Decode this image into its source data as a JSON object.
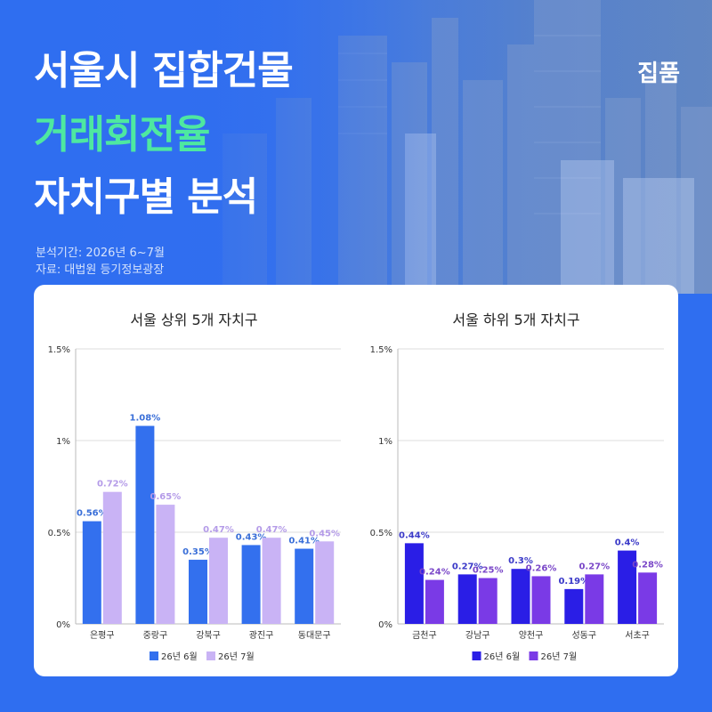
{
  "header": {
    "title_line1": "서울시 집합건물",
    "title_line2": "거래회전율",
    "title_line3": "자치구별 분석",
    "brand": "집품",
    "period": "분석기간: 2026년 6~7월",
    "source": "자료: 대법원 등기정보광장"
  },
  "colors": {
    "background": "#2f6ef0",
    "highlight_text": "#4ee8a0",
    "left_june": "#3370ee",
    "left_july": "#c9b3f5",
    "right_june": "#2a1ee6",
    "right_july": "#7a3ae6"
  },
  "chart_data": [
    {
      "type": "bar",
      "title": "서울 상위 5개 자치구",
      "categories": [
        "은평구",
        "중랑구",
        "강북구",
        "광진구",
        "동대문구"
      ],
      "series": [
        {
          "name": "26년 6월",
          "values": [
            0.56,
            1.08,
            0.35,
            0.43,
            0.41
          ],
          "labels": [
            "0.56%",
            "1.08%",
            "0.35%",
            "0.43%",
            "0.41%"
          ]
        },
        {
          "name": "26년 7월",
          "values": [
            0.72,
            0.65,
            0.47,
            0.47,
            0.45
          ],
          "labels": [
            "0.72%",
            "0.65%",
            "0.47%",
            "0.47%",
            "0.45%"
          ]
        }
      ],
      "ylim": [
        0,
        1.5
      ],
      "yticks": [
        "0%",
        "0.5%",
        "1%",
        "1.5%"
      ],
      "grid": true,
      "legend": "bottom"
    },
    {
      "type": "bar",
      "title": "서울 하위 5개 자치구",
      "categories": [
        "금천구",
        "강남구",
        "양천구",
        "성동구",
        "서초구"
      ],
      "series": [
        {
          "name": "26년 6월",
          "values": [
            0.44,
            0.27,
            0.3,
            0.19,
            0.4
          ],
          "labels": [
            "0.44%",
            "0.27%",
            "0.3%",
            "0.19%",
            "0.4%"
          ]
        },
        {
          "name": "26년 7월",
          "values": [
            0.24,
            0.25,
            0.26,
            0.27,
            0.28
          ],
          "labels": [
            "0.24%",
            "0.25%",
            "0.26%",
            "0.27%",
            "0.28%"
          ]
        }
      ],
      "ylim": [
        0,
        1.5
      ],
      "yticks": [
        "0%",
        "0.5%",
        "1%",
        "1.5%"
      ],
      "grid": true,
      "legend": "bottom"
    }
  ]
}
